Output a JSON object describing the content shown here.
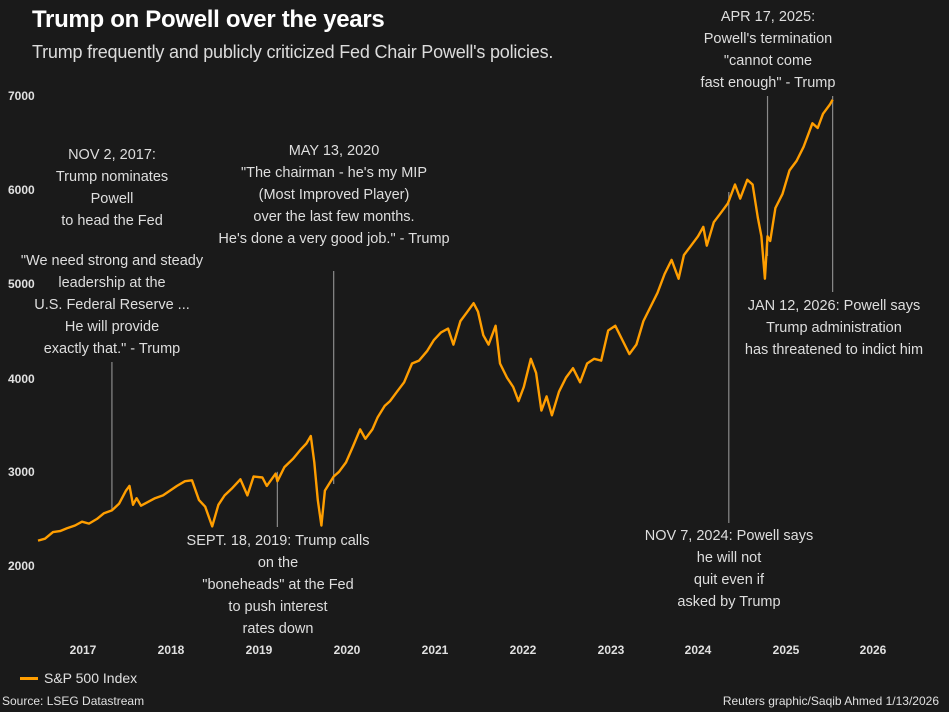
{
  "header": {
    "title": "Trump on Powell over the years",
    "subtitle": "Trump frequently and publicly criticized Fed Chair Powell's policies."
  },
  "footer": {
    "legend_label": "S&P 500 Index",
    "source": "Source: LSEG Datastream",
    "credit": "Reuters graphic/Saqib Ahmed 1/13/2026"
  },
  "colors": {
    "background": "#1a1a1a",
    "line": "#ff9e00",
    "leader": "#8a8a8a",
    "text": "#e0e0e0"
  },
  "annotations": [
    {
      "lines": [
        "NOV 2, 2017:",
        "Trump nominates",
        "Powell",
        "to head the Fed"
      ]
    },
    {
      "lines": [
        "\"We need strong and steady",
        "leadership at the",
        "U.S. Federal Reserve ...",
        "He will provide",
        "exactly that.\" - Trump"
      ]
    },
    {
      "lines": [
        "MAY 13, 2020",
        "\"The chairman - he's my MIP",
        "(Most Improved Player)",
        "over the last few months.",
        "He's done a very good job.\" - Trump"
      ]
    },
    {
      "lines": [
        "SEPT. 18, 2019: Trump calls",
        "on the",
        "\"boneheads\" at the Fed",
        "to push interest",
        "rates down"
      ]
    },
    {
      "lines": [
        "APR 17, 2025:",
        "Powell's termination",
        "\"cannot come",
        "fast enough\" - Trump"
      ]
    },
    {
      "lines": [
        "JAN 12, 2026: Powell says",
        "Trump administration",
        "has threatened to indict him"
      ]
    },
    {
      "lines": [
        "NOV 7, 2024: Powell says",
        "he will not",
        "quit even if",
        "asked by Trump"
      ]
    }
  ],
  "chart_data": {
    "type": "line",
    "title": "Trump on Powell over the years",
    "subtitle": "Trump frequently and publicly criticized Fed Chair Powell's policies.",
    "xlabel": "",
    "ylabel": "",
    "ylim": [
      2000,
      7000
    ],
    "xlim": [
      2017.0,
      2026.9
    ],
    "grid": false,
    "legend": "bottom-left",
    "yticks": [
      "2000",
      "3000",
      "4000",
      "5000",
      "6000",
      "7000"
    ],
    "xticks": [
      "2017",
      "2018",
      "2019",
      "2020",
      "2021",
      "2022",
      "2023",
      "2024",
      "2025",
      "2026"
    ],
    "series": [
      {
        "name": "S&P 500 Index",
        "x": [
          2017.0,
          2017.08,
          2017.17,
          2017.25,
          2017.33,
          2017.42,
          2017.5,
          2017.58,
          2017.67,
          2017.75,
          2017.84,
          2017.92,
          2018.0,
          2018.04,
          2018.08,
          2018.12,
          2018.17,
          2018.25,
          2018.33,
          2018.42,
          2018.5,
          2018.58,
          2018.67,
          2018.75,
          2018.83,
          2018.9,
          2018.98,
          2019.05,
          2019.12,
          2019.2,
          2019.3,
          2019.38,
          2019.45,
          2019.55,
          2019.6,
          2019.7,
          2019.72,
          2019.8,
          2019.9,
          2019.98,
          2020.05,
          2020.1,
          2020.14,
          2020.18,
          2020.22,
          2020.26,
          2020.3,
          2020.36,
          2020.42,
          2020.5,
          2020.58,
          2020.66,
          2020.72,
          2020.8,
          2020.86,
          2020.94,
          2021.0,
          2021.08,
          2021.16,
          2021.25,
          2021.33,
          2021.42,
          2021.5,
          2021.58,
          2021.66,
          2021.72,
          2021.8,
          2021.88,
          2021.95,
          2022.0,
          2022.06,
          2022.12,
          2022.2,
          2022.25,
          2022.33,
          2022.4,
          2022.46,
          2022.52,
          2022.6,
          2022.66,
          2022.72,
          2022.78,
          2022.84,
          2022.92,
          2023.0,
          2023.08,
          2023.16,
          2023.24,
          2023.32,
          2023.4,
          2023.48,
          2023.56,
          2023.64,
          2023.72,
          2023.8,
          2023.88,
          2023.96,
          2024.04,
          2024.12,
          2024.2,
          2024.28,
          2024.34,
          2024.42,
          2024.5,
          2024.56,
          2024.6,
          2024.68,
          2024.76,
          2024.84,
          2024.92,
          2024.98,
          2025.06,
          2025.12,
          2025.18,
          2025.22,
          2025.26,
          2025.29,
          2025.32,
          2025.38,
          2025.46,
          2025.54,
          2025.62,
          2025.7,
          2025.76,
          2025.8,
          2025.86,
          2025.92,
          2026.0,
          2026.03
        ],
        "values": [
          2270,
          2290,
          2360,
          2370,
          2400,
          2430,
          2470,
          2450,
          2500,
          2560,
          2590,
          2660,
          2800,
          2850,
          2650,
          2720,
          2640,
          2680,
          2720,
          2750,
          2800,
          2850,
          2900,
          2910,
          2700,
          2630,
          2420,
          2650,
          2750,
          2820,
          2920,
          2750,
          2950,
          2940,
          2850,
          2980,
          2900,
          3050,
          3140,
          3230,
          3300,
          3380,
          3100,
          2700,
          2430,
          2800,
          2860,
          2950,
          3000,
          3100,
          3270,
          3450,
          3350,
          3450,
          3580,
          3700,
          3750,
          3850,
          3950,
          4150,
          4180,
          4280,
          4400,
          4480,
          4520,
          4350,
          4600,
          4700,
          4790,
          4700,
          4450,
          4350,
          4550,
          4150,
          4000,
          3900,
          3750,
          3900,
          4200,
          4050,
          3650,
          3800,
          3600,
          3850,
          4000,
          4100,
          3950,
          4150,
          4200,
          4180,
          4500,
          4550,
          4400,
          4250,
          4350,
          4600,
          4750,
          4900,
          5100,
          5250,
          5050,
          5300,
          5400,
          5500,
          5600,
          5400,
          5650,
          5750,
          5850,
          6050,
          5900,
          6100,
          6050,
          5700,
          5500,
          5050,
          5500,
          5450,
          5800,
          5950,
          6200,
          6300,
          6450,
          6600,
          6700,
          6650,
          6800,
          6900,
          6950
        ]
      }
    ],
    "events": [
      {
        "date": "2017-11-02",
        "x": 2017.84,
        "y": 2590,
        "label": "NOV 2, 2017"
      },
      {
        "date": "2019-09-18",
        "x": 2019.72,
        "y": 3000,
        "label": "SEPT. 18, 2019"
      },
      {
        "date": "2020-05-13",
        "x": 2020.36,
        "y": 2870,
        "label": "MAY 13, 2020"
      },
      {
        "date": "2024-11-07",
        "x": 2024.85,
        "y": 5970,
        "label": "NOV 7, 2024"
      },
      {
        "date": "2025-04-17",
        "x": 2025.29,
        "y": 5280,
        "label": "APR 17, 2025"
      },
      {
        "date": "2026-01-12",
        "x": 2026.03,
        "y": 6950,
        "label": "JAN 12, 2026"
      }
    ]
  }
}
